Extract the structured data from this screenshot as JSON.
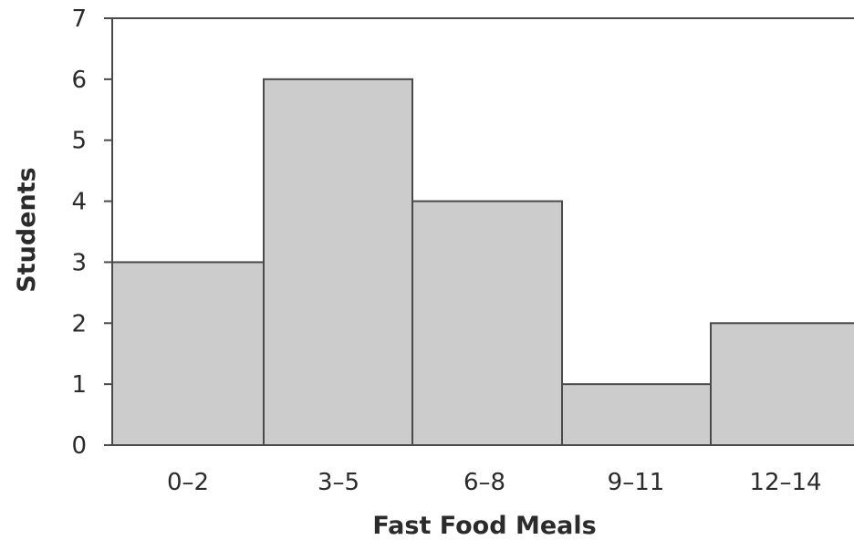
{
  "chart_data": {
    "type": "bar",
    "title": "",
    "xlabel": "Fast Food Meals",
    "ylabel": "Students",
    "categories": [
      "0–2",
      "3–5",
      "6–8",
      "9–11",
      "12–14"
    ],
    "values": [
      3,
      6,
      4,
      1,
      2
    ],
    "ylim": [
      0,
      7
    ],
    "yticks": [
      "0",
      "1",
      "2",
      "3",
      "4",
      "5",
      "6",
      "7"
    ],
    "grid": false,
    "legend": "none",
    "bar_color": "#cccccc",
    "edge_color": "#4a4a4a"
  }
}
